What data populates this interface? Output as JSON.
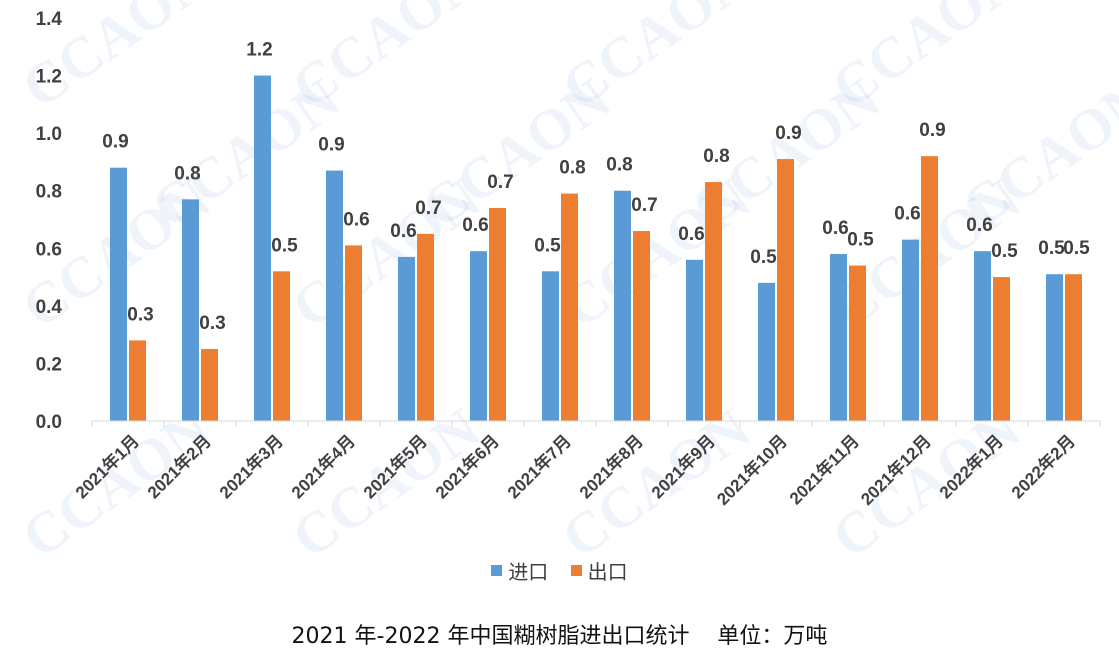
{
  "watermark": "CCAON",
  "caption": "2021 年-2022 年中国糊树脂进出口统计    单位：万吨",
  "colors": {
    "import": "#5b9bd5",
    "export": "#ed7d31",
    "axis": "#d9d9d9",
    "text": "#404040"
  },
  "legend": {
    "items": [
      {
        "label": "进口",
        "color": "#5b9bd5"
      },
      {
        "label": "出口",
        "color": "#ed7d31"
      }
    ],
    "position": "bottom"
  },
  "chart_data": {
    "type": "bar",
    "categories": [
      "2021年1月",
      "2021年2月",
      "2021年3月",
      "2021年4月",
      "2021年5月",
      "2021年6月",
      "2021年7月",
      "2021年8月",
      "2021年9月",
      "2021年10月",
      "2021年11月",
      "2021年12月",
      "2022年1月",
      "2022年2月"
    ],
    "series": [
      {
        "name": "进口",
        "values": [
          0.88,
          0.77,
          1.2,
          0.87,
          0.57,
          0.59,
          0.52,
          0.8,
          0.56,
          0.48,
          0.58,
          0.63,
          0.59,
          0.51
        ],
        "labels": [
          "0.9",
          "0.8",
          "1.2",
          "0.9",
          "0.6",
          "0.6",
          "0.5",
          "0.8",
          "0.6",
          "0.5",
          "0.6",
          "0.6",
          "0.6",
          "0.5"
        ]
      },
      {
        "name": "出口",
        "values": [
          0.28,
          0.25,
          0.52,
          0.61,
          0.65,
          0.74,
          0.79,
          0.66,
          0.83,
          0.91,
          0.54,
          0.92,
          0.5,
          0.51
        ],
        "labels": [
          "0.3",
          "0.3",
          "0.5",
          "0.6",
          "0.7",
          "0.7",
          "0.8",
          "0.7",
          "0.8",
          "0.9",
          "0.5",
          "0.9",
          "0.5",
          "0.5"
        ]
      }
    ],
    "ylim": [
      0,
      1.4
    ],
    "yticks": [
      "0.0",
      "0.2",
      "0.4",
      "0.6",
      "0.8",
      "1.0",
      "1.2",
      "1.4"
    ],
    "grid": false
  }
}
